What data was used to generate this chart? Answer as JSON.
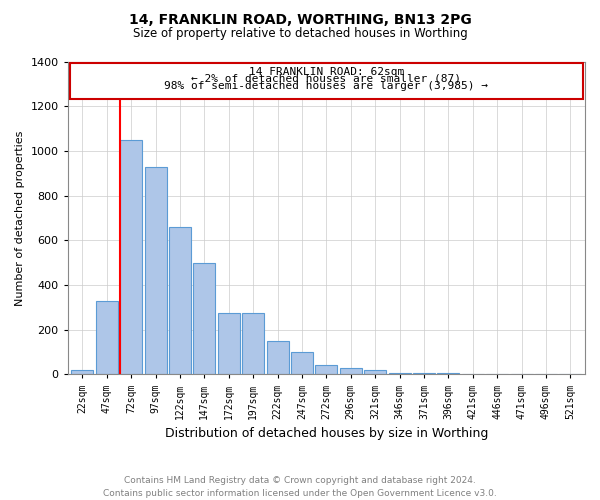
{
  "title": "14, FRANKLIN ROAD, WORTHING, BN13 2PG",
  "subtitle": "Size of property relative to detached houses in Worthing",
  "xlabel": "Distribution of detached houses by size in Worthing",
  "ylabel": "Number of detached properties",
  "categories": [
    "22sqm",
    "47sqm",
    "72sqm",
    "97sqm",
    "122sqm",
    "147sqm",
    "172sqm",
    "197sqm",
    "222sqm",
    "247sqm",
    "272sqm",
    "296sqm",
    "321sqm",
    "346sqm",
    "371sqm",
    "396sqm",
    "421sqm",
    "446sqm",
    "471sqm",
    "496sqm",
    "521sqm"
  ],
  "values": [
    20,
    330,
    1050,
    930,
    660,
    500,
    275,
    275,
    150,
    100,
    40,
    28,
    18,
    8,
    5,
    4,
    2,
    1,
    1,
    0,
    3
  ],
  "bar_color": "#aec6e8",
  "bar_edge_color": "#5b9bd5",
  "annotation_label": "14 FRANKLIN ROAD: 62sqm",
  "annotation_line1": "← 2% of detached houses are smaller (87)",
  "annotation_line2": "98% of semi-detached houses are larger (3,985) →",
  "annotation_box_color": "#cc0000",
  "ylim": [
    0,
    1400
  ],
  "yticks": [
    0,
    200,
    400,
    600,
    800,
    1000,
    1200,
    1400
  ],
  "footer_text": "Contains HM Land Registry data © Crown copyright and database right 2024.\nContains public sector information licensed under the Open Government Licence v3.0.",
  "bg_color": "#ffffff",
  "grid_color": "#cccccc"
}
